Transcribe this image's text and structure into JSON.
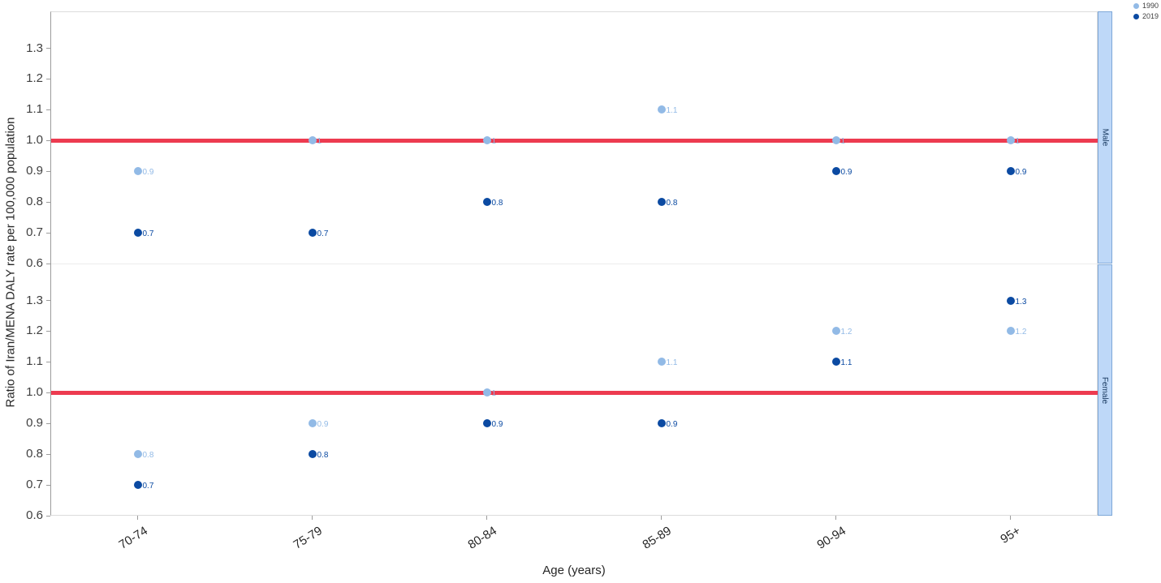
{
  "chart_data": {
    "type": "scatter",
    "title": "",
    "xlabel": "Age (years)",
    "ylabel": "Ratio of Iran/MENA DALY rate per 100,000 population",
    "categories": [
      "70-74",
      "75-79",
      "80-84",
      "85-89",
      "90-94",
      "95+"
    ],
    "yticks": [
      1.3,
      1.2,
      1.1,
      1.0,
      0.9,
      0.8,
      0.7,
      0.6
    ],
    "ylim": [
      0.6,
      1.42
    ],
    "grid": false,
    "reference_line": 1.0,
    "legend": {
      "position": "top-right",
      "items": [
        {
          "label": "1990",
          "color": "#92BAE6"
        },
        {
          "label": "2019",
          "color": "#0B4AA2"
        }
      ]
    },
    "panels": [
      {
        "label": "Male",
        "series": [
          {
            "name": "1990",
            "color": "#92BAE6",
            "values": [
              0.9,
              1,
              1,
              1.1,
              1,
              1
            ],
            "point_labels": [
              "0.9",
              "1",
              "1",
              "1.1",
              "1",
              "1"
            ]
          },
          {
            "name": "2019",
            "color": "#0B4AA2",
            "values": [
              0.7,
              0.7,
              0.8,
              0.8,
              0.9,
              0.9
            ],
            "point_labels": [
              "0.7",
              "0.7",
              "0.8",
              "0.8",
              "0.9",
              "0.9"
            ]
          }
        ]
      },
      {
        "label": "Female",
        "series": [
          {
            "name": "1990",
            "color": "#92BAE6",
            "values": [
              0.8,
              0.9,
              1,
              1.1,
              1.2,
              1.2
            ],
            "point_labels": [
              "0.8",
              "0.9",
              "1",
              "1.1",
              "1.2",
              "1.2"
            ]
          },
          {
            "name": "2019",
            "color": "#0B4AA2",
            "values": [
              0.7,
              0.8,
              0.9,
              0.9,
              1.1,
              1.3
            ],
            "point_labels": [
              "0.7",
              "0.8",
              "0.9",
              "0.9",
              "1.1",
              "1.3"
            ]
          }
        ]
      }
    ],
    "colors": {
      "series_1990": "#92BAE6",
      "series_2019": "#0B4AA2",
      "reference_line": "#ED3B50",
      "strip_fill": "#BED8F8",
      "strip_border": "#7FA8D8",
      "axis_line": "#9C9C9C",
      "panel_border": "#DCDCDC",
      "tick_text": "#404040"
    }
  }
}
